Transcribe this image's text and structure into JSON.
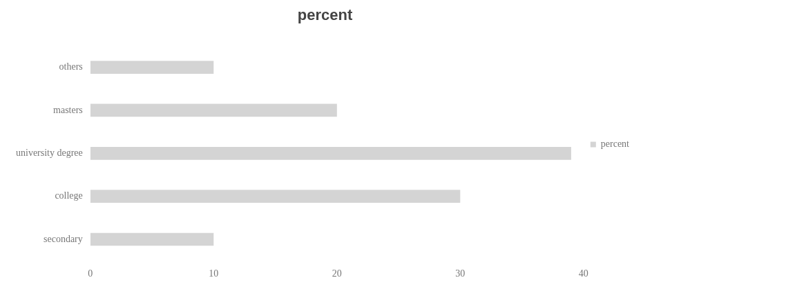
{
  "chart_data": {
    "type": "bar",
    "orientation": "horizontal",
    "title": "percent",
    "categories": [
      "others",
      "masters",
      "university degree",
      "college",
      "secondary"
    ],
    "series": [
      {
        "name": "percent",
        "color": "#d4d4d4",
        "values": [
          10,
          20,
          39,
          30,
          10
        ]
      }
    ],
    "xlim": [
      0,
      40
    ],
    "xticks": [
      0,
      10,
      20,
      30,
      40
    ],
    "grid": false,
    "legend": "right"
  }
}
